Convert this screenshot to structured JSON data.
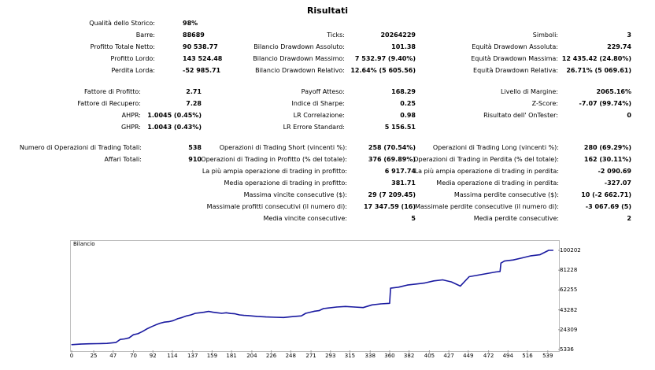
{
  "report": {
    "title": "Risultati",
    "quality_label": "Qualità dello Storico:",
    "quality_value": "98%",
    "col1": [
      {
        "label": "Barre:",
        "value": "88689"
      },
      {
        "label": "Profitto Totale Netto:",
        "value": "90 538.77"
      },
      {
        "label": "Profitto Lordo:",
        "value": "143 524.48"
      },
      {
        "label": "Perdita Lorda:",
        "value": "-52 985.71"
      }
    ],
    "col2": [
      {
        "label": "Ticks:",
        "value": "20264229"
      },
      {
        "label": "Bilancio Drawdown Assoluto:",
        "value": "101.38"
      },
      {
        "label": "Bilancio Drawdown Massimo:",
        "value": "7 532.97 (9.40%)"
      },
      {
        "label": "Bilancio Drawdown Relativo:",
        "value": "12.64% (5 605.56)"
      }
    ],
    "col3": [
      {
        "label": "Simboli:",
        "value": "3"
      },
      {
        "label": "Equità Drawdown Assoluta:",
        "value": "229.74"
      },
      {
        "label": "Equità Drawdown Massima:",
        "value": "12 435.42 (24.80%)"
      },
      {
        "label": "Equità Drawdown Relativa:",
        "value": "26.71% (5 069.61)"
      }
    ],
    "ratios1": [
      {
        "label": "Fattore di Profitto:",
        "value": "2.71"
      },
      {
        "label": "Fattore di Recupero:",
        "value": "7.28"
      },
      {
        "label": "AHPR:",
        "value": "1.0045 (0.45%)"
      },
      {
        "label": "GHPR:",
        "value": "1.0043 (0.43%)"
      }
    ],
    "ratios2": [
      {
        "label": "Payoff Atteso:",
        "value": "168.29"
      },
      {
        "label": "Indice di Sharpe:",
        "value": "0.25"
      },
      {
        "label": "LR Correlazione:",
        "value": "0.98"
      },
      {
        "label": "LR Errore Standard:",
        "value": "5 156.51"
      }
    ],
    "ratios3": [
      {
        "label": "Livello di Margine:",
        "value": "2065.16%"
      },
      {
        "label": "Z-Score:",
        "value": "-7.07 (99.74%)"
      },
      {
        "label": "Risultato dell' OnTester:",
        "value": "0"
      }
    ],
    "trades1": [
      {
        "label": "Numero di Operazioni di Trading Totali:",
        "value": "538"
      },
      {
        "label": "Affari Totali:",
        "value": "910"
      }
    ],
    "trades2": [
      {
        "label": "Operazioni di Trading Short (vincenti %):",
        "value": "258 (70.54%)"
      },
      {
        "label": "Operazioni di Trading in Profitto (% del totale):",
        "value": "376 (69.89%)"
      },
      {
        "label": "La più ampia operazione di trading in profitto:",
        "value": "6 917.74"
      },
      {
        "label": "Media operazione di trading in profitto:",
        "value": "381.71"
      },
      {
        "label": "Massima vincite consecutive ($):",
        "value": "29 (7 209.45)"
      },
      {
        "label": "Massimale profitti consecutivi (il numero di):",
        "value": "17 347.59 (16)"
      },
      {
        "label": "Media vincite consecutive:",
        "value": "5"
      }
    ],
    "trades3": [
      {
        "label": "Operazioni di Trading Long (vincenti %):",
        "value": "280 (69.29%)"
      },
      {
        "label": "Operazioni di Trading in Perdita (% del totale):",
        "value": "162 (30.11%)"
      },
      {
        "label": "La più ampia operazione di trading in perdita:",
        "value": "-2 090.69"
      },
      {
        "label": "Media operazione di trading in perdita:",
        "value": "-327.07"
      },
      {
        "label": "Massima perdite consecutive ($):",
        "value": "10 (-2 662.71)"
      },
      {
        "label": "Massimale perdite consecutive (il numero di):",
        "value": "-3 067.69 (5)"
      },
      {
        "label": "Media perdite consecutive:",
        "value": "2"
      }
    ]
  },
  "chart_data": {
    "type": "line",
    "title": "Bilancio",
    "line_color": "#1a1aa0",
    "x_ticks": [
      "0",
      "25",
      "47",
      "70",
      "92",
      "114",
      "137",
      "159",
      "181",
      "204",
      "226",
      "248",
      "271",
      "293",
      "315",
      "338",
      "360",
      "382",
      "405",
      "427",
      "449",
      "472",
      "494",
      "516",
      "539"
    ],
    "y_ticks": [
      "100202",
      "81228",
      "62255",
      "43282",
      "24309",
      "5336"
    ],
    "ylim": [
      5336,
      100202
    ],
    "xlim": [
      0,
      549
    ],
    "x": [
      0,
      10,
      20,
      30,
      40,
      50,
      55,
      60,
      65,
      70,
      75,
      80,
      85,
      90,
      95,
      100,
      105,
      110,
      115,
      120,
      125,
      130,
      135,
      140,
      145,
      150,
      155,
      160,
      165,
      170,
      175,
      180,
      185,
      190,
      195,
      200,
      210,
      220,
      230,
      240,
      250,
      260,
      265,
      270,
      275,
      280,
      285,
      290,
      300,
      310,
      320,
      330,
      340,
      350,
      360,
      361,
      370,
      380,
      390,
      400,
      410,
      420,
      430,
      440,
      450,
      460,
      470,
      480,
      485,
      486,
      490,
      500,
      510,
      520,
      530,
      540,
      545
    ],
    "y": [
      10000,
      10500,
      10800,
      11000,
      11200,
      12000,
      15000,
      15500,
      16500,
      19500,
      20500,
      22500,
      25000,
      27000,
      28800,
      30500,
      31500,
      32000,
      33000,
      34800,
      36000,
      37500,
      38500,
      40000,
      40500,
      41000,
      41800,
      41000,
      40500,
      40000,
      40500,
      39800,
      39500,
      38500,
      38000,
      37800,
      37000,
      36500,
      36200,
      36000,
      36800,
      37500,
      40000,
      41000,
      42000,
      42500,
      44500,
      45000,
      46000,
      46500,
      46000,
      45500,
      48000,
      49000,
      49500,
      64000,
      65000,
      67000,
      68000,
      69000,
      71000,
      72000,
      70000,
      66000,
      75000,
      76500,
      78000,
      79500,
      80000,
      88000,
      90000,
      91000,
      93000,
      95000,
      96000,
      100202,
      100202
    ]
  }
}
